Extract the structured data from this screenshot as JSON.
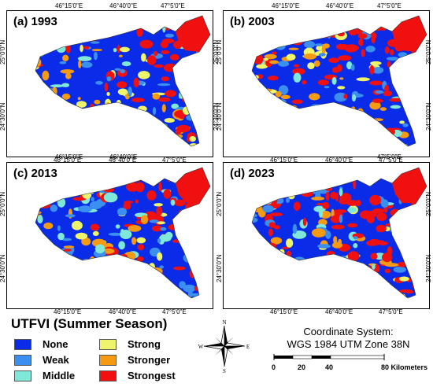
{
  "panels": [
    {
      "title": "(a) 1993",
      "theme": "a"
    },
    {
      "title": "(b) 2003",
      "theme": "b"
    },
    {
      "title": "(c) 2013",
      "theme": "c"
    },
    {
      "title": "(d) 2023",
      "theme": "d"
    }
  ],
  "ticks": {
    "top": [
      "46°15'0\"E",
      "46°40'0\"E",
      "47°5'0\"E"
    ],
    "bottom": [
      "46°15'0\"E",
      "46°40'0\"E",
      "47°5'0\"E"
    ],
    "left": [
      "25°0'0\"N",
      "24°30'0\"N"
    ],
    "right": [
      "25°0'0\"N",
      "24°30'0\"N"
    ]
  },
  "legend": {
    "title": "UTFVI (Summer Season)",
    "items": [
      {
        "label": "None",
        "color": "#0a2be8"
      },
      {
        "label": "Weak",
        "color": "#3a8ff0"
      },
      {
        "label": "Middle",
        "color": "#7fe8d8"
      },
      {
        "label": "Strong",
        "color": "#eef56a"
      },
      {
        "label": "Stronger",
        "color": "#f59a12"
      },
      {
        "label": "Strongest",
        "color": "#f01010"
      }
    ]
  },
  "compass": {
    "n": "N",
    "s": "S",
    "e": "E",
    "w": "W"
  },
  "coordinate_system": {
    "line1": "Coordinate System:",
    "line2": "WGS 1984 UTM Zone 38N"
  },
  "scale_bar": {
    "labels": [
      "0",
      "20",
      "40",
      "80 Kilometers"
    ]
  }
}
